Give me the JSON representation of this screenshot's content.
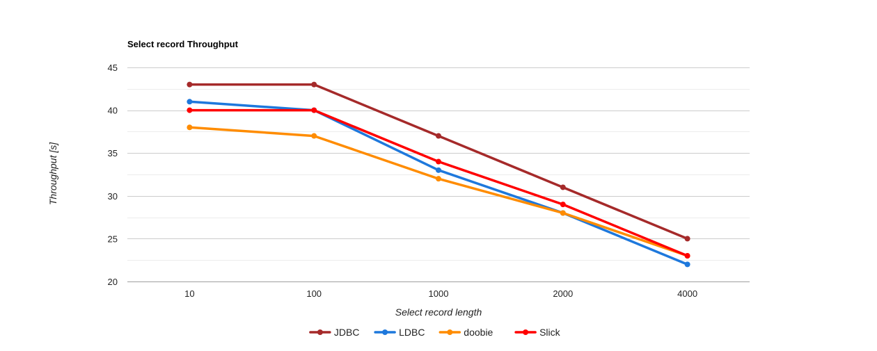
{
  "chart_data": {
    "type": "line",
    "title": "Select record Throughput",
    "xlabel": "Select record length",
    "ylabel": "Throughput [s]",
    "categories": [
      "10",
      "100",
      "1000",
      "2000",
      "4000"
    ],
    "ylim": [
      20,
      45
    ],
    "y_ticks": [
      20,
      25,
      30,
      35,
      40,
      45
    ],
    "grid": true,
    "minor_grid": true,
    "legend_position": "bottom",
    "series": [
      {
        "name": "JDBC",
        "color": "#a52a2a",
        "values": [
          43,
          43,
          37,
          31,
          25
        ]
      },
      {
        "name": "LDBC",
        "color": "#1e78dc",
        "values": [
          41,
          40,
          33,
          28,
          22
        ]
      },
      {
        "name": "doobie",
        "color": "#ff8c00",
        "values": [
          38,
          37,
          32,
          28,
          23
        ]
      },
      {
        "name": "Slick",
        "color": "#ff0000",
        "values": [
          40,
          40,
          34,
          29,
          23
        ]
      }
    ]
  }
}
